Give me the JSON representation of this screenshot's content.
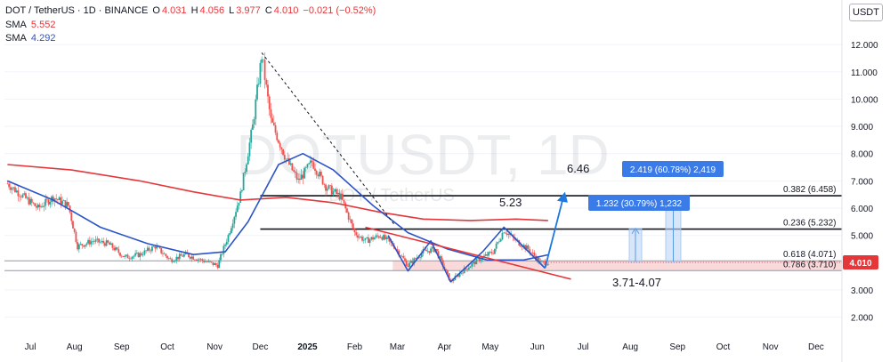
{
  "header": {
    "symbol": "DOT / TetherUS · 1D · BINANCE",
    "o_label": "O",
    "o_value": "4.031",
    "h_label": "H",
    "h_value": "4.056",
    "l_label": "L",
    "l_value": "3.977",
    "c_label": "C",
    "c_value": "4.010",
    "change": "−0.021 (−0.52%)",
    "sma1_label": "SMA",
    "sma1_value": "5.552",
    "sma2_label": "SMA",
    "sma2_value": "4.292",
    "currency": "USDT"
  },
  "colors": {
    "up": "#26a69a",
    "down": "#ef5350",
    "sma_long": "#e5363a",
    "sma_short": "#2a54c8",
    "zone_fill": "#f8c9cc",
    "projection": "#1e78e0",
    "label_bg": "#3b7be8",
    "price_tag": "#e5363a"
  },
  "chart_data": {
    "type": "candlestick",
    "watermark": "DOTUSDT, 1D",
    "watermark_sub": "DOT / TetherUS",
    "x_ticks": [
      "Jul",
      "Aug",
      "Sep",
      "Oct",
      "Nov",
      "Dec",
      "2025",
      "Feb",
      "Mar",
      "Apr",
      "May",
      "Jun",
      "Jul",
      "Aug",
      "Sep",
      "Oct",
      "Nov",
      "Dec"
    ],
    "y_ticks": [
      "12.000",
      "11.000",
      "10.000",
      "9.000",
      "8.000",
      "7.000",
      "6.000",
      "5.000",
      "3.000",
      "2.000"
    ],
    "ylim": [
      1.5,
      12.2
    ],
    "last_price": "4.010",
    "fib_levels": [
      {
        "label": "0.382 (6.458)",
        "value": 6.458
      },
      {
        "label": "0.236 (5.232)",
        "value": 5.232
      },
      {
        "label": "0.618 (4.071)",
        "value": 4.071
      },
      {
        "label": "0.786 (3.710)",
        "value": 3.71
      }
    ],
    "annotations": {
      "target_high": "6.46",
      "target_mid": "5.23",
      "support_zone": "3.71-4.07",
      "box_high": "2.419 (60.78%) 2,419",
      "box_mid": "1.232 (30.79%) 1,232"
    },
    "price_path": [
      [
        "2024-06-20",
        6.9
      ],
      [
        "2024-07-01",
        6.4
      ],
      [
        "2024-07-10",
        6.0
      ],
      [
        "2024-07-20",
        6.4
      ],
      [
        "2024-07-30",
        6.1
      ],
      [
        "2024-08-05",
        4.6
      ],
      [
        "2024-08-15",
        4.8
      ],
      [
        "2024-08-25",
        4.7
      ],
      [
        "2024-09-05",
        4.2
      ],
      [
        "2024-09-15",
        4.3
      ],
      [
        "2024-09-25",
        4.6
      ],
      [
        "2024-10-05",
        4.1
      ],
      [
        "2024-10-15",
        4.3
      ],
      [
        "2024-10-25",
        4.1
      ],
      [
        "2024-11-05",
        3.9
      ],
      [
        "2024-11-12",
        5.0
      ],
      [
        "2024-11-20",
        6.5
      ],
      [
        "2024-11-28",
        9.0
      ],
      [
        "2024-12-04",
        11.6
      ],
      [
        "2024-12-10",
        9.2
      ],
      [
        "2024-12-20",
        7.8
      ],
      [
        "2024-12-28",
        7.0
      ],
      [
        "2025-01-06",
        7.7
      ],
      [
        "2025-01-15",
        6.8
      ],
      [
        "2025-01-25",
        6.4
      ],
      [
        "2025-02-03",
        5.1
      ],
      [
        "2025-02-10",
        4.8
      ],
      [
        "2025-02-20",
        5.0
      ],
      [
        "2025-03-01",
        4.6
      ],
      [
        "2025-03-10",
        3.9
      ],
      [
        "2025-03-20",
        4.4
      ],
      [
        "2025-03-28",
        4.5
      ],
      [
        "2025-04-07",
        3.3
      ],
      [
        "2025-04-15",
        3.7
      ],
      [
        "2025-04-25",
        4.1
      ],
      [
        "2025-05-05",
        4.4
      ],
      [
        "2025-05-12",
        5.2
      ],
      [
        "2025-05-20",
        4.8
      ],
      [
        "2025-05-28",
        4.5
      ],
      [
        "2025-06-05",
        4.0
      ],
      [
        "2025-06-10",
        4.01
      ]
    ],
    "sma_long": [
      [
        "2024-06-20",
        7.6
      ],
      [
        "2024-08-01",
        7.4
      ],
      [
        "2024-09-15",
        7.0
      ],
      [
        "2024-10-20",
        6.6
      ],
      [
        "2024-11-20",
        6.3
      ],
      [
        "2024-12-20",
        6.4
      ],
      [
        "2025-01-20",
        6.2
      ],
      [
        "2025-02-20",
        5.85
      ],
      [
        "2025-03-20",
        5.6
      ],
      [
        "2025-04-20",
        5.55
      ],
      [
        "2025-05-20",
        5.6
      ],
      [
        "2025-06-10",
        5.55
      ]
    ],
    "sma_short": [
      [
        "2024-06-20",
        7.0
      ],
      [
        "2024-07-20",
        6.3
      ],
      [
        "2024-08-20",
        5.3
      ],
      [
        "2024-09-20",
        4.7
      ],
      [
        "2024-10-20",
        4.3
      ],
      [
        "2024-11-10",
        4.4
      ],
      [
        "2024-11-25",
        5.5
      ],
      [
        "2024-12-15",
        7.6
      ],
      [
        "2024-12-31",
        8.0
      ],
      [
        "2025-01-20",
        7.4
      ],
      [
        "2025-02-15",
        6.1
      ],
      [
        "2025-03-10",
        5.1
      ],
      [
        "2025-04-05",
        4.5
      ],
      [
        "2025-05-01",
        4.1
      ],
      [
        "2025-05-25",
        4.1
      ],
      [
        "2025-06-10",
        4.29
      ]
    ],
    "pattern_w": [
      [
        "2025-02-25",
        5.0
      ],
      [
        "2025-03-10",
        3.7
      ],
      [
        "2025-03-25",
        4.8
      ],
      [
        "2025-04-07",
        3.3
      ],
      [
        "2025-04-28",
        4.4
      ],
      [
        "2025-05-12",
        5.3
      ],
      [
        "2025-06-08",
        3.8
      ]
    ],
    "projection": [
      [
        "2025-06-08",
        3.8
      ],
      [
        "2025-06-20",
        6.4
      ]
    ],
    "trend_dashed": [
      [
        "2024-12-04",
        11.7
      ],
      [
        "2025-03-01",
        5.4
      ]
    ],
    "trend_down": [
      [
        "2025-02-10",
        5.3
      ],
      [
        "2025-06-25",
        3.4
      ]
    ]
  }
}
